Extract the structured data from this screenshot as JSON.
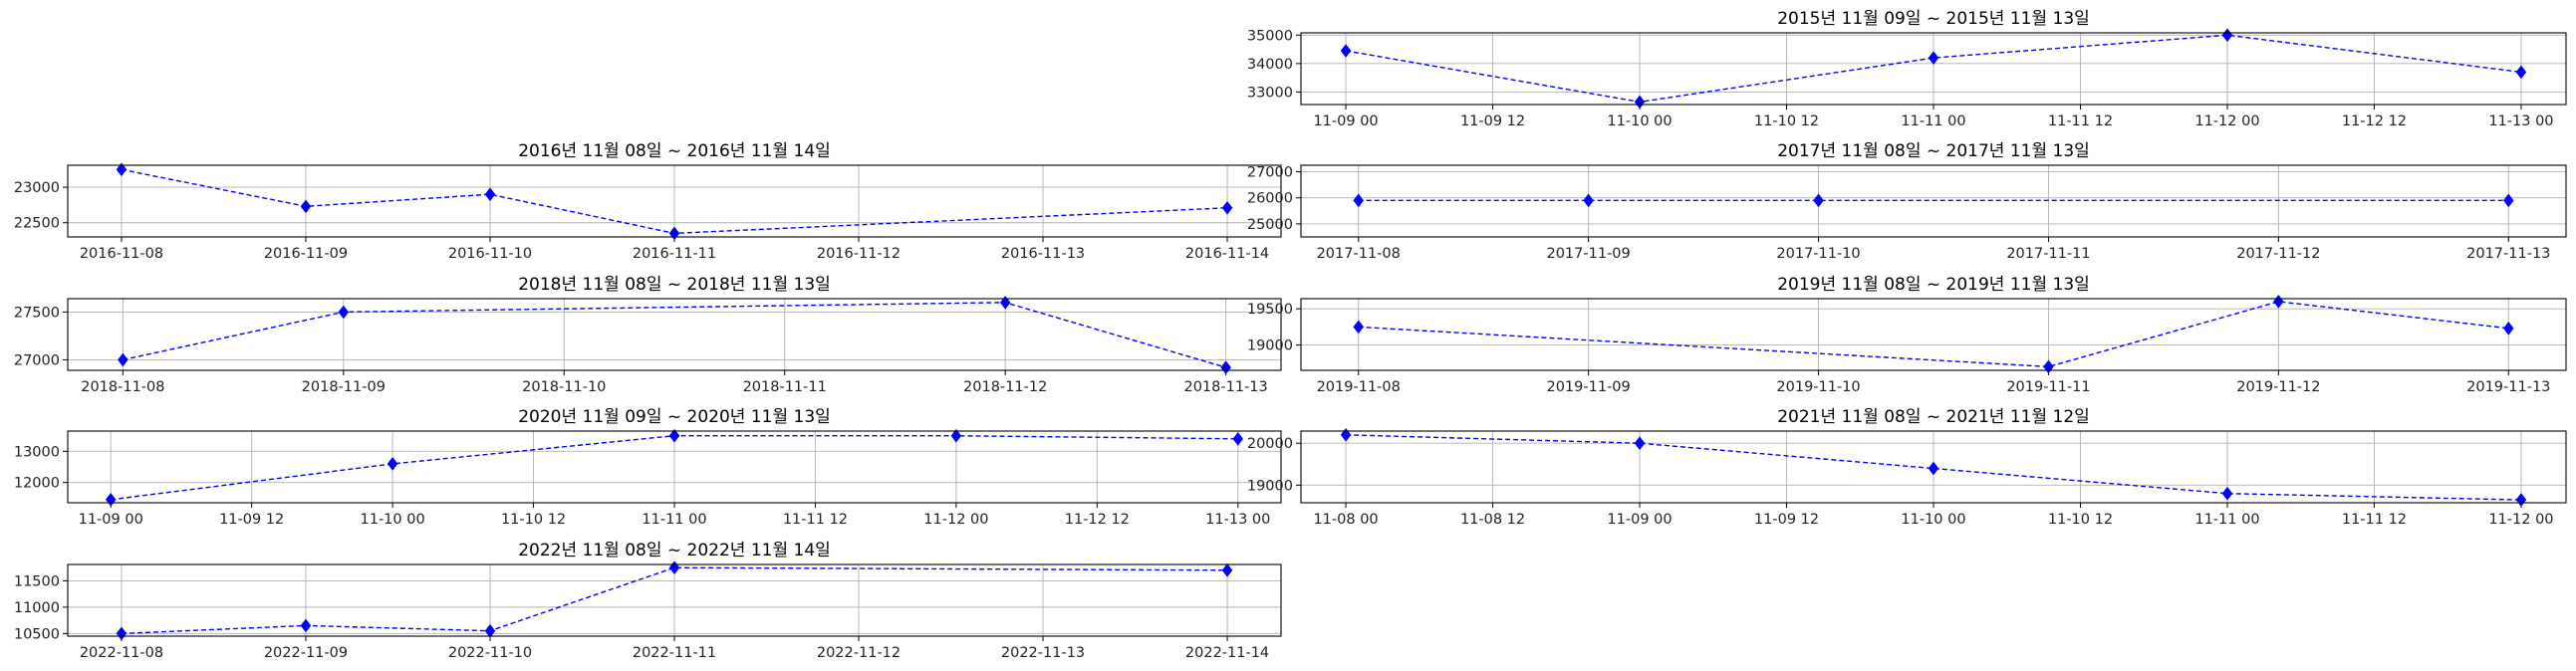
{
  "chart_data": [
    {
      "type": "line",
      "title": "2015년 11월 09일 ~ 2015년 11월 13일",
      "x_type": "datetime",
      "x": [
        "2015-11-09",
        "2015-11-10",
        "2015-11-11",
        "2015-11-12",
        "2015-11-13"
      ],
      "values": [
        34450,
        32650,
        34200,
        35000,
        33700
      ],
      "x_ticks": [
        "2015-11-09 00:00",
        "2015-11-09 12:00",
        "2015-11-10 00:00",
        "2015-11-10 12:00",
        "2015-11-11 00:00",
        "2015-11-11 12:00",
        "2015-11-12 00:00",
        "2015-11-12 12:00",
        "2015-11-13 00:00"
      ],
      "x_tick_labels": [
        "11-09 00",
        "11-09 12",
        "11-10 00",
        "11-10 12",
        "11-11 00",
        "11-11 12",
        "11-12 00",
        "11-12 12",
        "11-13 00"
      ],
      "xlim": [
        "2015-11-08 20:20",
        "2015-11-13 03:40"
      ],
      "y_ticks": [
        33000,
        34000,
        35000
      ],
      "ylim": [
        32560,
        35080
      ],
      "grid": true,
      "line_style": "dashed",
      "marker": "diamond",
      "color": "#0000ff"
    },
    {
      "type": "line",
      "title": "2016년 11월 08일 ~ 2016년 11월 14일",
      "x_type": "datetime",
      "x": [
        "2016-11-08",
        "2016-11-09",
        "2016-11-10",
        "2016-11-11",
        "2016-11-14"
      ],
      "values": [
        23250,
        22730,
        22900,
        22350,
        22710
      ],
      "x_ticks": [
        "2016-11-08",
        "2016-11-09",
        "2016-11-10",
        "2016-11-11",
        "2016-11-12",
        "2016-11-13",
        "2016-11-14"
      ],
      "x_tick_labels": [
        "2016-11-08",
        "2016-11-09",
        "2016-11-10",
        "2016-11-11",
        "2016-11-12",
        "2016-11-13",
        "2016-11-14"
      ],
      "xlim": [
        "2016-11-07 17:00",
        "2016-11-14 07:00"
      ],
      "y_ticks": [
        22500,
        23000
      ],
      "ylim": [
        22300,
        23310
      ],
      "grid": true,
      "line_style": "dashed",
      "marker": "diamond",
      "color": "#0000ff"
    },
    {
      "type": "line",
      "title": "2017년 11월 08일 ~ 2017년 11월 13일",
      "x_type": "datetime",
      "x": [
        "2017-11-08",
        "2017-11-09",
        "2017-11-10",
        "2017-11-13"
      ],
      "values": [
        25900,
        25900,
        25900,
        25900
      ],
      "x_ticks": [
        "2017-11-08",
        "2017-11-09",
        "2017-11-10",
        "2017-11-11",
        "2017-11-12",
        "2017-11-13"
      ],
      "x_tick_labels": [
        "2017-11-08",
        "2017-11-09",
        "2017-11-10",
        "2017-11-11",
        "2017-11-12",
        "2017-11-13"
      ],
      "xlim": [
        "2017-11-07 18:00",
        "2017-11-13 06:00"
      ],
      "y_ticks": [
        25000,
        26000,
        27000
      ],
      "ylim": [
        24500,
        27250
      ],
      "grid": true,
      "line_style": "dashed",
      "marker": "diamond",
      "color": "#0000ff"
    },
    {
      "type": "line",
      "title": "2018년 11월 08일 ~ 2018년 11월 13일",
      "x_type": "datetime",
      "x": [
        "2018-11-08",
        "2018-11-09",
        "2018-11-12",
        "2018-11-13"
      ],
      "values": [
        27000,
        27500,
        27600,
        26920
      ],
      "x_ticks": [
        "2018-11-08",
        "2018-11-09",
        "2018-11-10",
        "2018-11-11",
        "2018-11-12",
        "2018-11-13"
      ],
      "x_tick_labels": [
        "2018-11-08",
        "2018-11-09",
        "2018-11-10",
        "2018-11-11",
        "2018-11-12",
        "2018-11-13"
      ],
      "xlim": [
        "2018-11-07 18:00",
        "2018-11-13 06:00"
      ],
      "y_ticks": [
        27000,
        27500
      ],
      "ylim": [
        26890,
        27640
      ],
      "grid": true,
      "line_style": "dashed",
      "marker": "diamond",
      "color": "#0000ff"
    },
    {
      "type": "line",
      "title": "2019년 11월 08일 ~ 2019년 11월 13일",
      "x_type": "datetime",
      "x": [
        "2019-11-08",
        "2019-11-11",
        "2019-11-12",
        "2019-11-13"
      ],
      "values": [
        19250,
        18700,
        19600,
        19230
      ],
      "x_ticks": [
        "2019-11-08",
        "2019-11-09",
        "2019-11-10",
        "2019-11-11",
        "2019-11-12",
        "2019-11-13"
      ],
      "x_tick_labels": [
        "2019-11-08",
        "2019-11-09",
        "2019-11-10",
        "2019-11-11",
        "2019-11-12",
        "2019-11-13"
      ],
      "xlim": [
        "2019-11-07 18:00",
        "2019-11-13 06:00"
      ],
      "y_ticks": [
        19000,
        19500
      ],
      "ylim": [
        18650,
        19640
      ],
      "grid": true,
      "line_style": "dashed",
      "marker": "diamond",
      "color": "#0000ff"
    },
    {
      "type": "line",
      "title": "2020년 11월 09일 ~ 2020년 11월 13일",
      "x_type": "datetime",
      "x": [
        "2020-11-09",
        "2020-11-10",
        "2020-11-11",
        "2020-11-12",
        "2020-11-13"
      ],
      "values": [
        11450,
        12600,
        13500,
        13500,
        13400
      ],
      "x_ticks": [
        "2020-11-09 00:00",
        "2020-11-09 12:00",
        "2020-11-10 00:00",
        "2020-11-10 12:00",
        "2020-11-11 00:00",
        "2020-11-11 12:00",
        "2020-11-12 00:00",
        "2020-11-12 12:00",
        "2020-11-13 00:00"
      ],
      "x_tick_labels": [
        "11-09 00",
        "11-09 12",
        "11-10 00",
        "11-10 12",
        "11-11 00",
        "11-11 12",
        "11-12 00",
        "11-12 12",
        "11-13 00"
      ],
      "xlim": [
        "2020-11-08 20:20",
        "2020-11-13 03:40"
      ],
      "y_ticks": [
        12000,
        13000
      ],
      "ylim": [
        11350,
        13650
      ],
      "grid": true,
      "line_style": "dashed",
      "marker": "diamond",
      "color": "#0000ff"
    },
    {
      "type": "line",
      "title": "2021년 11월 08일 ~ 2021년 11월 12일",
      "x_type": "datetime",
      "x": [
        "2021-11-08",
        "2021-11-09",
        "2021-11-10",
        "2021-11-11",
        "2021-11-12"
      ],
      "values": [
        20200,
        20000,
        19400,
        18800,
        18650
      ],
      "x_ticks": [
        "2021-11-08 00:00",
        "2021-11-08 12:00",
        "2021-11-09 00:00",
        "2021-11-09 12:00",
        "2021-11-10 00:00",
        "2021-11-10 12:00",
        "2021-11-11 00:00",
        "2021-11-11 12:00",
        "2021-11-12 00:00"
      ],
      "x_tick_labels": [
        "11-08 00",
        "11-08 12",
        "11-09 00",
        "11-09 12",
        "11-10 00",
        "11-10 12",
        "11-11 00",
        "11-11 12",
        "11-12 00"
      ],
      "xlim": [
        "2021-11-07 20:20",
        "2021-11-12 03:40"
      ],
      "y_ticks": [
        19000,
        20000
      ],
      "ylim": [
        18580,
        20290
      ],
      "grid": true,
      "line_style": "dashed",
      "marker": "diamond",
      "color": "#0000ff"
    },
    {
      "type": "line",
      "title": "2022년 11월 08일 ~ 2022년 11월 14일",
      "x_type": "datetime",
      "x": [
        "2022-11-08",
        "2022-11-09",
        "2022-11-10",
        "2022-11-11",
        "2022-11-14"
      ],
      "values": [
        10500,
        10650,
        10550,
        11750,
        11700
      ],
      "x_ticks": [
        "2022-11-08",
        "2022-11-09",
        "2022-11-10",
        "2022-11-11",
        "2022-11-12",
        "2022-11-13",
        "2022-11-14"
      ],
      "x_tick_labels": [
        "2022-11-08",
        "2022-11-09",
        "2022-11-10",
        "2022-11-11",
        "2022-11-12",
        "2022-11-13",
        "2022-11-14"
      ],
      "xlim": [
        "2022-11-07 17:00",
        "2022-11-14 07:00"
      ],
      "y_ticks": [
        10500,
        11000,
        11500
      ],
      "ylim": [
        10450,
        11810
      ],
      "grid": true,
      "line_style": "dashed",
      "marker": "diamond",
      "color": "#0000ff"
    }
  ]
}
